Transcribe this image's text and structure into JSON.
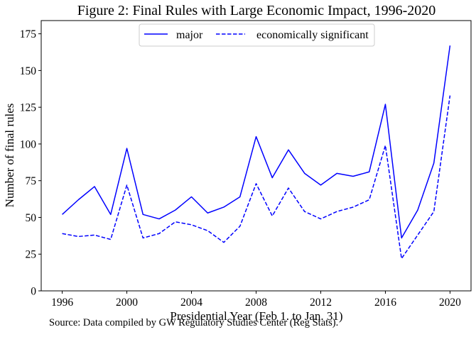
{
  "chart_data": {
    "type": "line",
    "title": "Figure 2: Final Rules with Large Economic Impact, 1996-2020",
    "xlabel": "Presidential Year (Feb 1. to Jan. 31)",
    "ylabel": "Number of final rules",
    "x": [
      1996,
      1997,
      1998,
      1999,
      2000,
      2001,
      2002,
      2003,
      2004,
      2005,
      2006,
      2007,
      2008,
      2009,
      2010,
      2011,
      2012,
      2013,
      2014,
      2015,
      2016,
      2017,
      2018,
      2019,
      2020
    ],
    "xlim": [
      1994.7,
      2021.3
    ],
    "ylim": [
      0,
      184
    ],
    "xticks": [
      1996,
      2000,
      2004,
      2008,
      2012,
      2016,
      2020
    ],
    "yticks": [
      0,
      25,
      50,
      75,
      100,
      125,
      150,
      175
    ],
    "grid": false,
    "legend_position": "top-center",
    "series": [
      {
        "name": "major",
        "style": "solid",
        "color": "#0000ff",
        "values": [
          52,
          62,
          71,
          52,
          97,
          52,
          49,
          55,
          64,
          53,
          57,
          64,
          105,
          77,
          96,
          80,
          72,
          80,
          78,
          81,
          127,
          36,
          55,
          87,
          167
        ]
      },
      {
        "name": "economically significant",
        "style": "dashed",
        "color": "#0000ff",
        "values": [
          39,
          37,
          38,
          35,
          72,
          36,
          39,
          47,
          45,
          41,
          33,
          44,
          73,
          51,
          70,
          54,
          49,
          54,
          57,
          62,
          99,
          22,
          38,
          54,
          133
        ]
      }
    ]
  },
  "source_note": "Source: Data compiled by GW Regulatory Studies Center (Reg Stats)."
}
